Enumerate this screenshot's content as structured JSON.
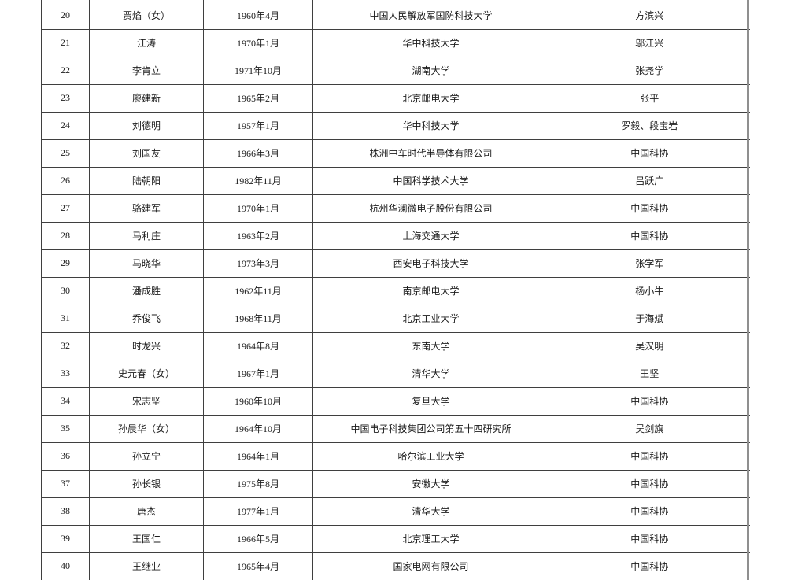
{
  "colors": {
    "table_border": "#3f3f3f",
    "right_edge_bar": "#8f8f8f",
    "text": "#1c1c1c",
    "background": "#ffffff"
  },
  "table": {
    "rows": [
      [
        "20",
        "贾焰（女）",
        "1960年4月",
        "中国人民解放军国防科技大学",
        "方滨兴"
      ],
      [
        "21",
        "江涛",
        "1970年1月",
        "华中科技大学",
        "邬江兴"
      ],
      [
        "22",
        "李肯立",
        "1971年10月",
        "湖南大学",
        "张尧学"
      ],
      [
        "23",
        "廖建新",
        "1965年2月",
        "北京邮电大学",
        "张平"
      ],
      [
        "24",
        "刘德明",
        "1957年1月",
        "华中科技大学",
        "罗毅、段宝岩"
      ],
      [
        "25",
        "刘国友",
        "1966年3月",
        "株洲中车时代半导体有限公司",
        "中国科协"
      ],
      [
        "26",
        "陆朝阳",
        "1982年11月",
        "中国科学技术大学",
        "吕跃广"
      ],
      [
        "27",
        "骆建军",
        "1970年1月",
        "杭州华澜微电子股份有限公司",
        "中国科协"
      ],
      [
        "28",
        "马利庄",
        "1963年2月",
        "上海交通大学",
        "中国科协"
      ],
      [
        "29",
        "马晓华",
        "1973年3月",
        "西安电子科技大学",
        "张学军"
      ],
      [
        "30",
        "潘成胜",
        "1962年11月",
        "南京邮电大学",
        "杨小牛"
      ],
      [
        "31",
        "乔俊飞",
        "1968年11月",
        "北京工业大学",
        "于海斌"
      ],
      [
        "32",
        "时龙兴",
        "1964年8月",
        "东南大学",
        "吴汉明"
      ],
      [
        "33",
        "史元春（女）",
        "1967年1月",
        "清华大学",
        "王坚"
      ],
      [
        "34",
        "宋志坚",
        "1960年10月",
        "复旦大学",
        "中国科协"
      ],
      [
        "35",
        "孙晨华（女）",
        "1964年10月",
        "中国电子科技集团公司第五十四研究所",
        "吴剑旗"
      ],
      [
        "36",
        "孙立宁",
        "1964年1月",
        "哈尔滨工业大学",
        "中国科协"
      ],
      [
        "37",
        "孙长银",
        "1975年8月",
        "安徽大学",
        "中国科协"
      ],
      [
        "38",
        "唐杰",
        "1977年1月",
        "清华大学",
        "中国科协"
      ],
      [
        "39",
        "王国仁",
        "1966年5月",
        "北京理工大学",
        "中国科协"
      ],
      [
        "40",
        "王继业",
        "1965年4月",
        "国家电网有限公司",
        "中国科协"
      ]
    ]
  }
}
